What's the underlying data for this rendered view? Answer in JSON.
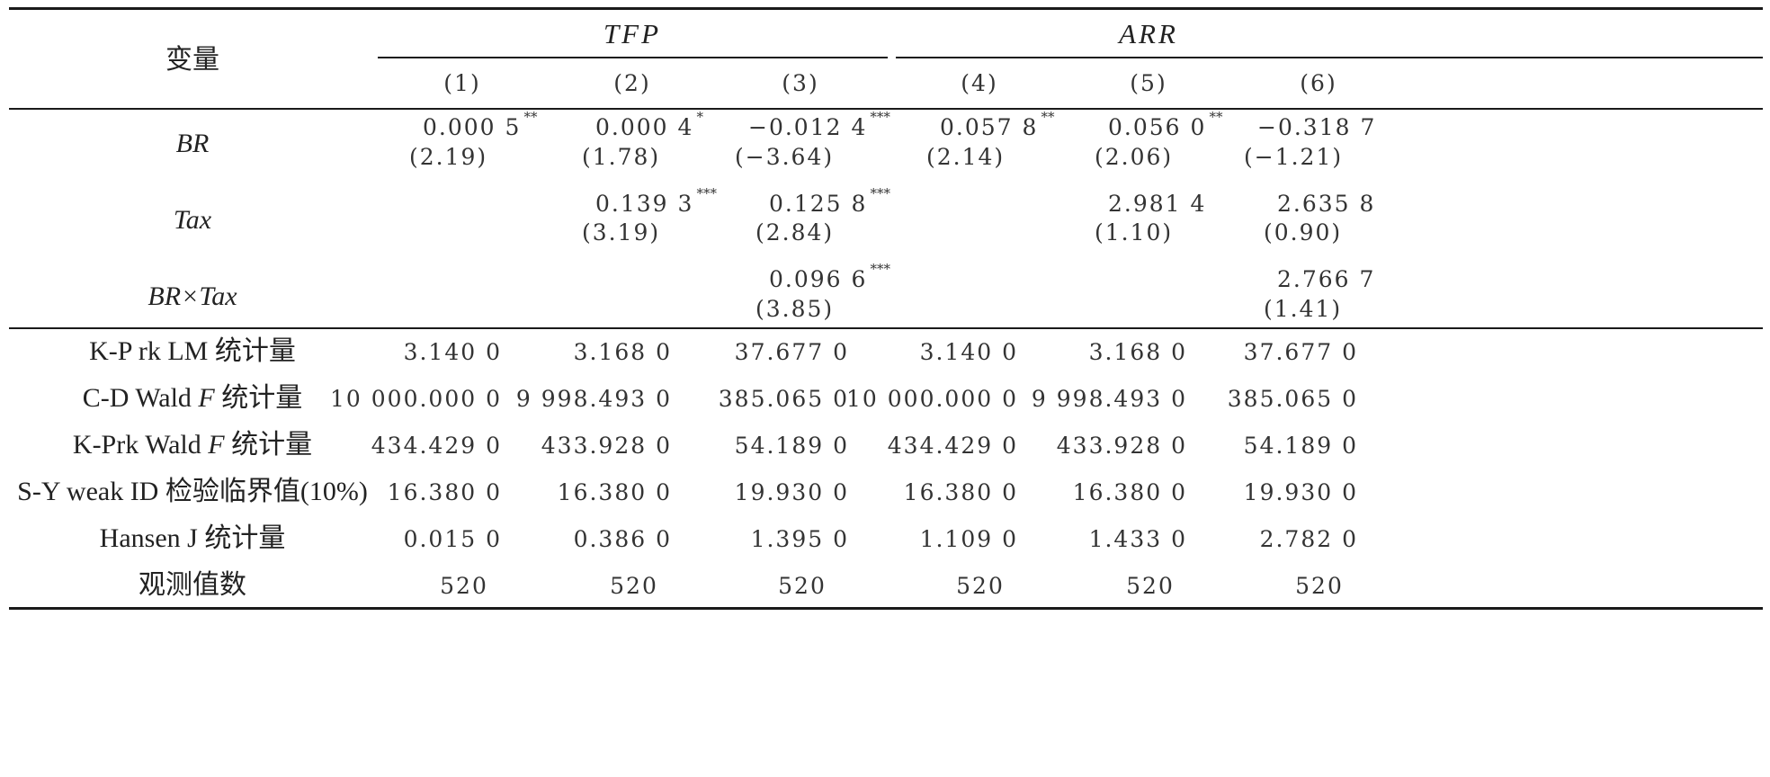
{
  "header": {
    "variable_label": "变量",
    "groups": [
      "TFP",
      "ARR"
    ],
    "columns": [
      "(1)",
      "(2)",
      "(3)",
      "(4)",
      "(5)",
      "(6)"
    ]
  },
  "variables": [
    {
      "name": "BR",
      "coefs": [
        "0.000 5",
        "0.000 4",
        "−0.012 4",
        "0.057 8",
        "0.056 0",
        "−0.318 7"
      ],
      "stars": [
        "**",
        "*",
        "***",
        "**",
        "**",
        ""
      ],
      "tstats": [
        "(2.19)",
        "(1.78)",
        "(−3.64)",
        "(2.14)",
        "(2.06)",
        "(−1.21)"
      ]
    },
    {
      "name": "Tax",
      "coefs": [
        "",
        "0.139 3",
        "0.125 8",
        "",
        "2.981 4",
        "2.635 8"
      ],
      "stars": [
        "",
        "***",
        "***",
        "",
        "",
        ""
      ],
      "tstats": [
        "",
        "(3.19)",
        "(2.84)",
        "",
        "(1.10)",
        "(0.90)"
      ]
    },
    {
      "name": "BR×Tax",
      "coefs": [
        "",
        "",
        "0.096 6",
        "",
        "",
        "2.766 7"
      ],
      "stars": [
        "",
        "",
        "***",
        "",
        "",
        ""
      ],
      "tstats": [
        "",
        "",
        "(3.85)",
        "",
        "",
        "(1.41)"
      ]
    }
  ],
  "stats": [
    {
      "label": "K-P rk LM 统计量",
      "values": [
        "3.140 0",
        "3.168 0",
        "37.677 0",
        "3.140 0",
        "3.168 0",
        "37.677 0"
      ]
    },
    {
      "label_prefix": "C-D Wald ",
      "label_italic": "F",
      "label_suffix": " 统计量",
      "values": [
        "10 000.000 0",
        "9 998.493 0",
        "385.065 0",
        "10 000.000 0",
        "9 998.493 0",
        "385.065 0"
      ]
    },
    {
      "label_prefix": "K-Prk Wald ",
      "label_italic": "F",
      "label_suffix": " 统计量",
      "values": [
        "434.429 0",
        "433.928 0",
        "54.189 0",
        "434.429 0",
        "433.928 0",
        "54.189 0"
      ]
    },
    {
      "label": "S-Y weak ID 检验临界值(10%)",
      "values": [
        "16.380 0",
        "16.380 0",
        "19.930 0",
        "16.380 0",
        "16.380 0",
        "19.930 0"
      ]
    },
    {
      "label": "Hansen J 统计量",
      "values": [
        "0.015 0",
        "0.386 0",
        "1.395 0",
        "1.109 0",
        "1.433 0",
        "2.782 0"
      ]
    },
    {
      "label": "观测值数",
      "values": [
        "520",
        "520",
        "520",
        "520",
        "520",
        "520"
      ]
    }
  ]
}
